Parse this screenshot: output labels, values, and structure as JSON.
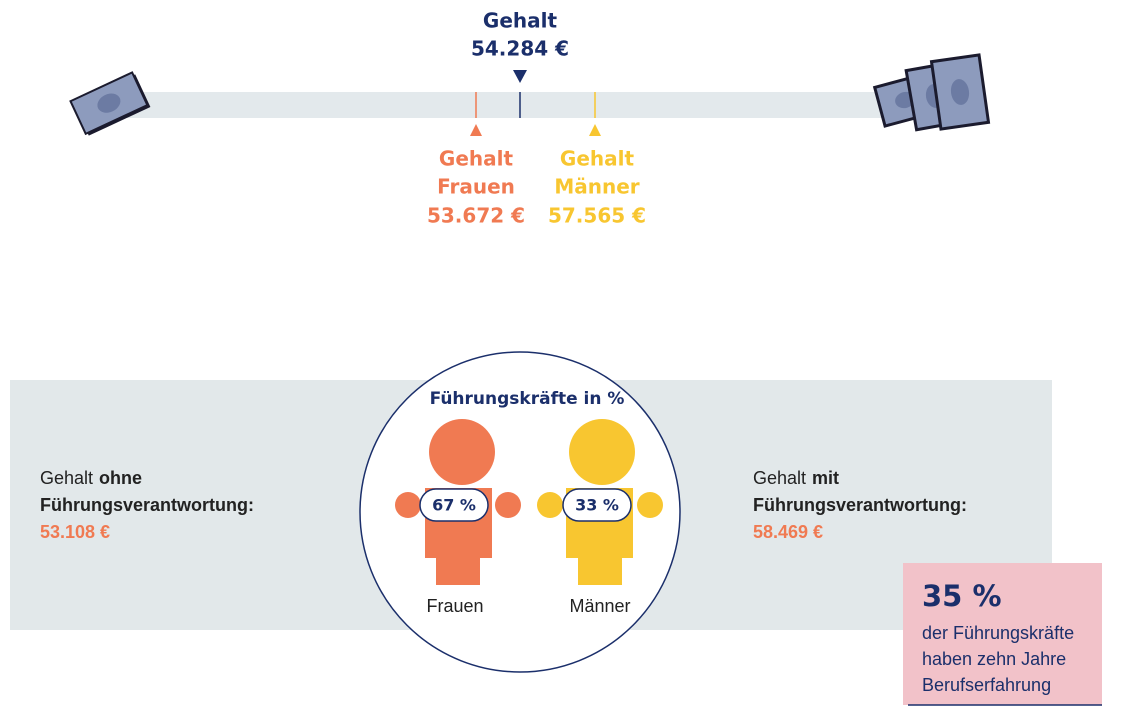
{
  "salary_scale": {
    "overall": {
      "label": "Gehalt",
      "value": "54.284 €"
    },
    "women": {
      "label": [
        "Gehalt",
        "Frauen"
      ],
      "value": "53.672 €"
    },
    "men": {
      "label": [
        "Gehalt",
        "Männer"
      ],
      "value": "57.565 €"
    }
  },
  "leadership": {
    "title": "Führungskräfte in %",
    "women": {
      "share": "67 %",
      "label": "Frauen"
    },
    "men": {
      "share": "33 %",
      "label": "Männer"
    }
  },
  "salary_without": {
    "prefix": "Gehalt",
    "emphasis": "ohne",
    "line2": "Führungsverantwortung:",
    "value": "53.108 €"
  },
  "salary_with": {
    "prefix": "Gehalt",
    "emphasis": "mit",
    "line2": "Führungsverantwortung:",
    "value": "58.469 €"
  },
  "callout": {
    "figure": "35 %",
    "text": [
      "der Führungskräfte",
      "haben zehn Jahre",
      "Berufserfahrung"
    ]
  }
}
